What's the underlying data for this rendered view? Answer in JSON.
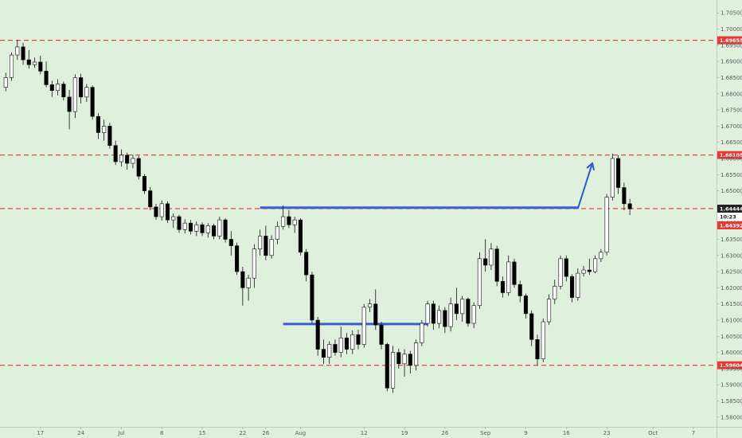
{
  "chart_data": {
    "type": "candlestick",
    "y_axis": {
      "position": "right",
      "min": 1.577,
      "max": 1.709,
      "ticks": [
        "1.70500",
        "1.70000",
        "1.69500",
        "1.69000",
        "1.68500",
        "1.68000",
        "1.67500",
        "1.67000",
        "1.66500",
        "1.66000",
        "1.65500",
        "1.65000",
        "1.64500",
        "1.64000",
        "1.63500",
        "1.63000",
        "1.62500",
        "1.62000",
        "1.61500",
        "1.61000",
        "1.60500",
        "1.60000",
        "1.59500",
        "1.59000",
        "1.58500",
        "1.58000"
      ]
    },
    "x_axis": {
      "ticks": [
        {
          "label": "17",
          "i": 6
        },
        {
          "label": "24",
          "i": 13
        },
        {
          "label": "Jul",
          "i": 20
        },
        {
          "label": "8",
          "i": 27
        },
        {
          "label": "15",
          "i": 34
        },
        {
          "label": "22",
          "i": 41
        },
        {
          "label": "26",
          "i": 45
        },
        {
          "label": "Aug",
          "i": 51
        },
        {
          "label": "12",
          "i": 62
        },
        {
          "label": "19",
          "i": 69
        },
        {
          "label": "26",
          "i": 76
        },
        {
          "label": "Sep",
          "i": 83
        },
        {
          "label": "9",
          "i": 90
        },
        {
          "label": "16",
          "i": 97
        },
        {
          "label": "23",
          "i": 104
        },
        {
          "label": "Oct",
          "i": 112
        },
        {
          "label": "7",
          "i": 119
        }
      ],
      "index_range": [
        -1,
        123
      ]
    },
    "grid": false,
    "horizontal_levels": [
      {
        "value": 1.69655,
        "label": "1.69655",
        "style": "dashed",
        "color": "#e53935"
      },
      {
        "value": 1.66105,
        "label": "1.66105",
        "style": "dashed",
        "color": "#e53935"
      },
      {
        "value": 1.6445,
        "label": "",
        "style": "dashed",
        "color": "#e53935"
      },
      {
        "value": 1.59604,
        "label": "1.59604",
        "style": "dashed",
        "color": "#e53935"
      }
    ],
    "price_badges": [
      {
        "value": 1.64444,
        "label": "1.64444",
        "bg": "#222222",
        "fg": "#ffffff"
      },
      {
        "value": 1.6424,
        "label": "10:23",
        "bg": "#ffffff",
        "fg": "#222222"
      },
      {
        "value": 1.64392,
        "label": "1.64392",
        "bg": "#e53935",
        "fg": "#ffffff"
      }
    ],
    "drawn_lines": [
      {
        "i0": 44,
        "v0": 1.6448,
        "i1": 99,
        "v1": 1.6448,
        "color": "#3b5bd6"
      },
      {
        "i0": 48,
        "v0": 1.6088,
        "i1": 73,
        "v1": 1.6088,
        "color": "#3b5bd6"
      }
    ],
    "arrow": {
      "i0": 99,
      "v0": 1.6445,
      "i1": 101.5,
      "v1": 1.6585,
      "color": "#2f56d3"
    },
    "colors": {
      "background": "#dff0dd",
      "up": "#ffffff",
      "down": "#000000",
      "wick": "#111111"
    },
    "candles": [
      {
        "o": 1.682,
        "h": 1.6865,
        "l": 1.6808,
        "c": 1.685
      },
      {
        "o": 1.685,
        "h": 1.6928,
        "l": 1.684,
        "c": 1.692
      },
      {
        "o": 1.692,
        "h": 1.6966,
        "l": 1.6905,
        "c": 1.6945
      },
      {
        "o": 1.6945,
        "h": 1.6958,
        "l": 1.689,
        "c": 1.6905
      },
      {
        "o": 1.6905,
        "h": 1.6935,
        "l": 1.6878,
        "c": 1.689
      },
      {
        "o": 1.689,
        "h": 1.6912,
        "l": 1.688,
        "c": 1.6898
      },
      {
        "o": 1.6898,
        "h": 1.6918,
        "l": 1.686,
        "c": 1.687
      },
      {
        "o": 1.687,
        "h": 1.69,
        "l": 1.682,
        "c": 1.6828
      },
      {
        "o": 1.6828,
        "h": 1.684,
        "l": 1.679,
        "c": 1.681
      },
      {
        "o": 1.681,
        "h": 1.6845,
        "l": 1.6795,
        "c": 1.683
      },
      {
        "o": 1.683,
        "h": 1.6838,
        "l": 1.678,
        "c": 1.679
      },
      {
        "o": 1.679,
        "h": 1.6812,
        "l": 1.669,
        "c": 1.6745
      },
      {
        "o": 1.6745,
        "h": 1.686,
        "l": 1.6725,
        "c": 1.685
      },
      {
        "o": 1.685,
        "h": 1.6862,
        "l": 1.677,
        "c": 1.679
      },
      {
        "o": 1.679,
        "h": 1.683,
        "l": 1.6775,
        "c": 1.682
      },
      {
        "o": 1.682,
        "h": 1.6826,
        "l": 1.672,
        "c": 1.673
      },
      {
        "o": 1.673,
        "h": 1.674,
        "l": 1.666,
        "c": 1.668
      },
      {
        "o": 1.668,
        "h": 1.672,
        "l": 1.6655,
        "c": 1.67
      },
      {
        "o": 1.67,
        "h": 1.671,
        "l": 1.663,
        "c": 1.664
      },
      {
        "o": 1.664,
        "h": 1.6655,
        "l": 1.658,
        "c": 1.659
      },
      {
        "o": 1.659,
        "h": 1.6628,
        "l": 1.6575,
        "c": 1.661
      },
      {
        "o": 1.661,
        "h": 1.6618,
        "l": 1.6565,
        "c": 1.6585
      },
      {
        "o": 1.6585,
        "h": 1.6612,
        "l": 1.657,
        "c": 1.66
      },
      {
        "o": 1.66,
        "h": 1.6608,
        "l": 1.6535,
        "c": 1.6545
      },
      {
        "o": 1.6545,
        "h": 1.6552,
        "l": 1.649,
        "c": 1.65
      },
      {
        "o": 1.65,
        "h": 1.6512,
        "l": 1.644,
        "c": 1.645
      },
      {
        "o": 1.645,
        "h": 1.646,
        "l": 1.641,
        "c": 1.642
      },
      {
        "o": 1.642,
        "h": 1.647,
        "l": 1.6408,
        "c": 1.646
      },
      {
        "o": 1.646,
        "h": 1.6468,
        "l": 1.64,
        "c": 1.641
      },
      {
        "o": 1.641,
        "h": 1.643,
        "l": 1.6385,
        "c": 1.642
      },
      {
        "o": 1.642,
        "h": 1.6426,
        "l": 1.637,
        "c": 1.638
      },
      {
        "o": 1.638,
        "h": 1.6412,
        "l": 1.6368,
        "c": 1.64
      },
      {
        "o": 1.64,
        "h": 1.641,
        "l": 1.6365,
        "c": 1.6375
      },
      {
        "o": 1.6375,
        "h": 1.6405,
        "l": 1.636,
        "c": 1.6395
      },
      {
        "o": 1.6395,
        "h": 1.6402,
        "l": 1.636,
        "c": 1.637
      },
      {
        "o": 1.637,
        "h": 1.64,
        "l": 1.6355,
        "c": 1.6392
      },
      {
        "o": 1.6392,
        "h": 1.6398,
        "l": 1.635,
        "c": 1.636
      },
      {
        "o": 1.636,
        "h": 1.642,
        "l": 1.635,
        "c": 1.641
      },
      {
        "o": 1.641,
        "h": 1.6415,
        "l": 1.634,
        "c": 1.635
      },
      {
        "o": 1.635,
        "h": 1.6375,
        "l": 1.63,
        "c": 1.633
      },
      {
        "o": 1.633,
        "h": 1.634,
        "l": 1.624,
        "c": 1.625
      },
      {
        "o": 1.625,
        "h": 1.6265,
        "l": 1.6145,
        "c": 1.62
      },
      {
        "o": 1.62,
        "h": 1.624,
        "l": 1.616,
        "c": 1.623
      },
      {
        "o": 1.623,
        "h": 1.6335,
        "l": 1.62,
        "c": 1.632
      },
      {
        "o": 1.632,
        "h": 1.638,
        "l": 1.63,
        "c": 1.636
      },
      {
        "o": 1.636,
        "h": 1.6392,
        "l": 1.6285,
        "c": 1.63
      },
      {
        "o": 1.63,
        "h": 1.6362,
        "l": 1.629,
        "c": 1.635
      },
      {
        "o": 1.635,
        "h": 1.6405,
        "l": 1.6335,
        "c": 1.639
      },
      {
        "o": 1.639,
        "h": 1.6455,
        "l": 1.638,
        "c": 1.642
      },
      {
        "o": 1.642,
        "h": 1.644,
        "l": 1.6385,
        "c": 1.6395
      },
      {
        "o": 1.6395,
        "h": 1.642,
        "l": 1.637,
        "c": 1.641
      },
      {
        "o": 1.641,
        "h": 1.6415,
        "l": 1.63,
        "c": 1.631
      },
      {
        "o": 1.631,
        "h": 1.632,
        "l": 1.622,
        "c": 1.624
      },
      {
        "o": 1.624,
        "h": 1.625,
        "l": 1.609,
        "c": 1.61
      },
      {
        "o": 1.61,
        "h": 1.611,
        "l": 1.599,
        "c": 1.601
      },
      {
        "o": 1.601,
        "h": 1.604,
        "l": 1.5965,
        "c": 1.5985
      },
      {
        "o": 1.5985,
        "h": 1.6035,
        "l": 1.5965,
        "c": 1.6025
      },
      {
        "o": 1.6025,
        "h": 1.604,
        "l": 1.599,
        "c": 1.6
      },
      {
        "o": 1.6,
        "h": 1.608,
        "l": 1.5985,
        "c": 1.6045
      },
      {
        "o": 1.6045,
        "h": 1.606,
        "l": 1.5995,
        "c": 1.601
      },
      {
        "o": 1.601,
        "h": 1.6068,
        "l": 1.5995,
        "c": 1.6055
      },
      {
        "o": 1.6055,
        "h": 1.607,
        "l": 1.601,
        "c": 1.6025
      },
      {
        "o": 1.6025,
        "h": 1.615,
        "l": 1.6015,
        "c": 1.614
      },
      {
        "o": 1.614,
        "h": 1.6165,
        "l": 1.6125,
        "c": 1.615
      },
      {
        "o": 1.615,
        "h": 1.6195,
        "l": 1.607,
        "c": 1.6085
      },
      {
        "o": 1.6085,
        "h": 1.6095,
        "l": 1.601,
        "c": 1.6025
      },
      {
        "o": 1.6025,
        "h": 1.603,
        "l": 1.588,
        "c": 1.589
      },
      {
        "o": 1.589,
        "h": 1.602,
        "l": 1.5875,
        "c": 1.6
      },
      {
        "o": 1.6,
        "h": 1.6012,
        "l": 1.595,
        "c": 1.5965
      },
      {
        "o": 1.5965,
        "h": 1.601,
        "l": 1.5925,
        "c": 1.5995
      },
      {
        "o": 1.5995,
        "h": 1.6005,
        "l": 1.5935,
        "c": 1.596
      },
      {
        "o": 1.596,
        "h": 1.604,
        "l": 1.5945,
        "c": 1.603
      },
      {
        "o": 1.603,
        "h": 1.61,
        "l": 1.602,
        "c": 1.609
      },
      {
        "o": 1.609,
        "h": 1.616,
        "l": 1.608,
        "c": 1.615
      },
      {
        "o": 1.615,
        "h": 1.616,
        "l": 1.607,
        "c": 1.609
      },
      {
        "o": 1.609,
        "h": 1.6145,
        "l": 1.6075,
        "c": 1.613
      },
      {
        "o": 1.613,
        "h": 1.614,
        "l": 1.606,
        "c": 1.608
      },
      {
        "o": 1.608,
        "h": 1.617,
        "l": 1.6065,
        "c": 1.615
      },
      {
        "o": 1.615,
        "h": 1.62,
        "l": 1.61,
        "c": 1.612
      },
      {
        "o": 1.612,
        "h": 1.6175,
        "l": 1.6095,
        "c": 1.6165
      },
      {
        "o": 1.6165,
        "h": 1.617,
        "l": 1.608,
        "c": 1.609
      },
      {
        "o": 1.609,
        "h": 1.6155,
        "l": 1.6075,
        "c": 1.6145
      },
      {
        "o": 1.6145,
        "h": 1.631,
        "l": 1.6135,
        "c": 1.629
      },
      {
        "o": 1.629,
        "h": 1.635,
        "l": 1.625,
        "c": 1.627
      },
      {
        "o": 1.627,
        "h": 1.6338,
        "l": 1.6255,
        "c": 1.632
      },
      {
        "o": 1.632,
        "h": 1.633,
        "l": 1.6205,
        "c": 1.622
      },
      {
        "o": 1.622,
        "h": 1.6235,
        "l": 1.617,
        "c": 1.6185
      },
      {
        "o": 1.6185,
        "h": 1.63,
        "l": 1.6175,
        "c": 1.628
      },
      {
        "o": 1.628,
        "h": 1.629,
        "l": 1.62,
        "c": 1.621
      },
      {
        "o": 1.621,
        "h": 1.6222,
        "l": 1.6155,
        "c": 1.6175
      },
      {
        "o": 1.6175,
        "h": 1.6182,
        "l": 1.6105,
        "c": 1.612
      },
      {
        "o": 1.612,
        "h": 1.613,
        "l": 1.602,
        "c": 1.604
      },
      {
        "o": 1.604,
        "h": 1.6055,
        "l": 1.596,
        "c": 1.598
      },
      {
        "o": 1.598,
        "h": 1.6105,
        "l": 1.597,
        "c": 1.6095
      },
      {
        "o": 1.6095,
        "h": 1.618,
        "l": 1.6085,
        "c": 1.6165
      },
      {
        "o": 1.6165,
        "h": 1.6225,
        "l": 1.615,
        "c": 1.6205
      },
      {
        "o": 1.6205,
        "h": 1.63,
        "l": 1.6195,
        "c": 1.629
      },
      {
        "o": 1.629,
        "h": 1.63,
        "l": 1.622,
        "c": 1.6235
      },
      {
        "o": 1.6235,
        "h": 1.6242,
        "l": 1.6155,
        "c": 1.617
      },
      {
        "o": 1.617,
        "h": 1.626,
        "l": 1.616,
        "c": 1.6245
      },
      {
        "o": 1.6245,
        "h": 1.6268,
        "l": 1.6235,
        "c": 1.6255
      },
      {
        "o": 1.6255,
        "h": 1.629,
        "l": 1.624,
        "c": 1.625
      },
      {
        "o": 1.625,
        "h": 1.63,
        "l": 1.6245,
        "c": 1.629
      },
      {
        "o": 1.629,
        "h": 1.632,
        "l": 1.628,
        "c": 1.631
      },
      {
        "o": 1.631,
        "h": 1.649,
        "l": 1.63,
        "c": 1.648
      },
      {
        "o": 1.648,
        "h": 1.6615,
        "l": 1.647,
        "c": 1.66
      },
      {
        "o": 1.66,
        "h": 1.661,
        "l": 1.649,
        "c": 1.651
      },
      {
        "o": 1.651,
        "h": 1.6525,
        "l": 1.644,
        "c": 1.646
      },
      {
        "o": 1.646,
        "h": 1.6475,
        "l": 1.6425,
        "c": 1.6444
      }
    ]
  }
}
